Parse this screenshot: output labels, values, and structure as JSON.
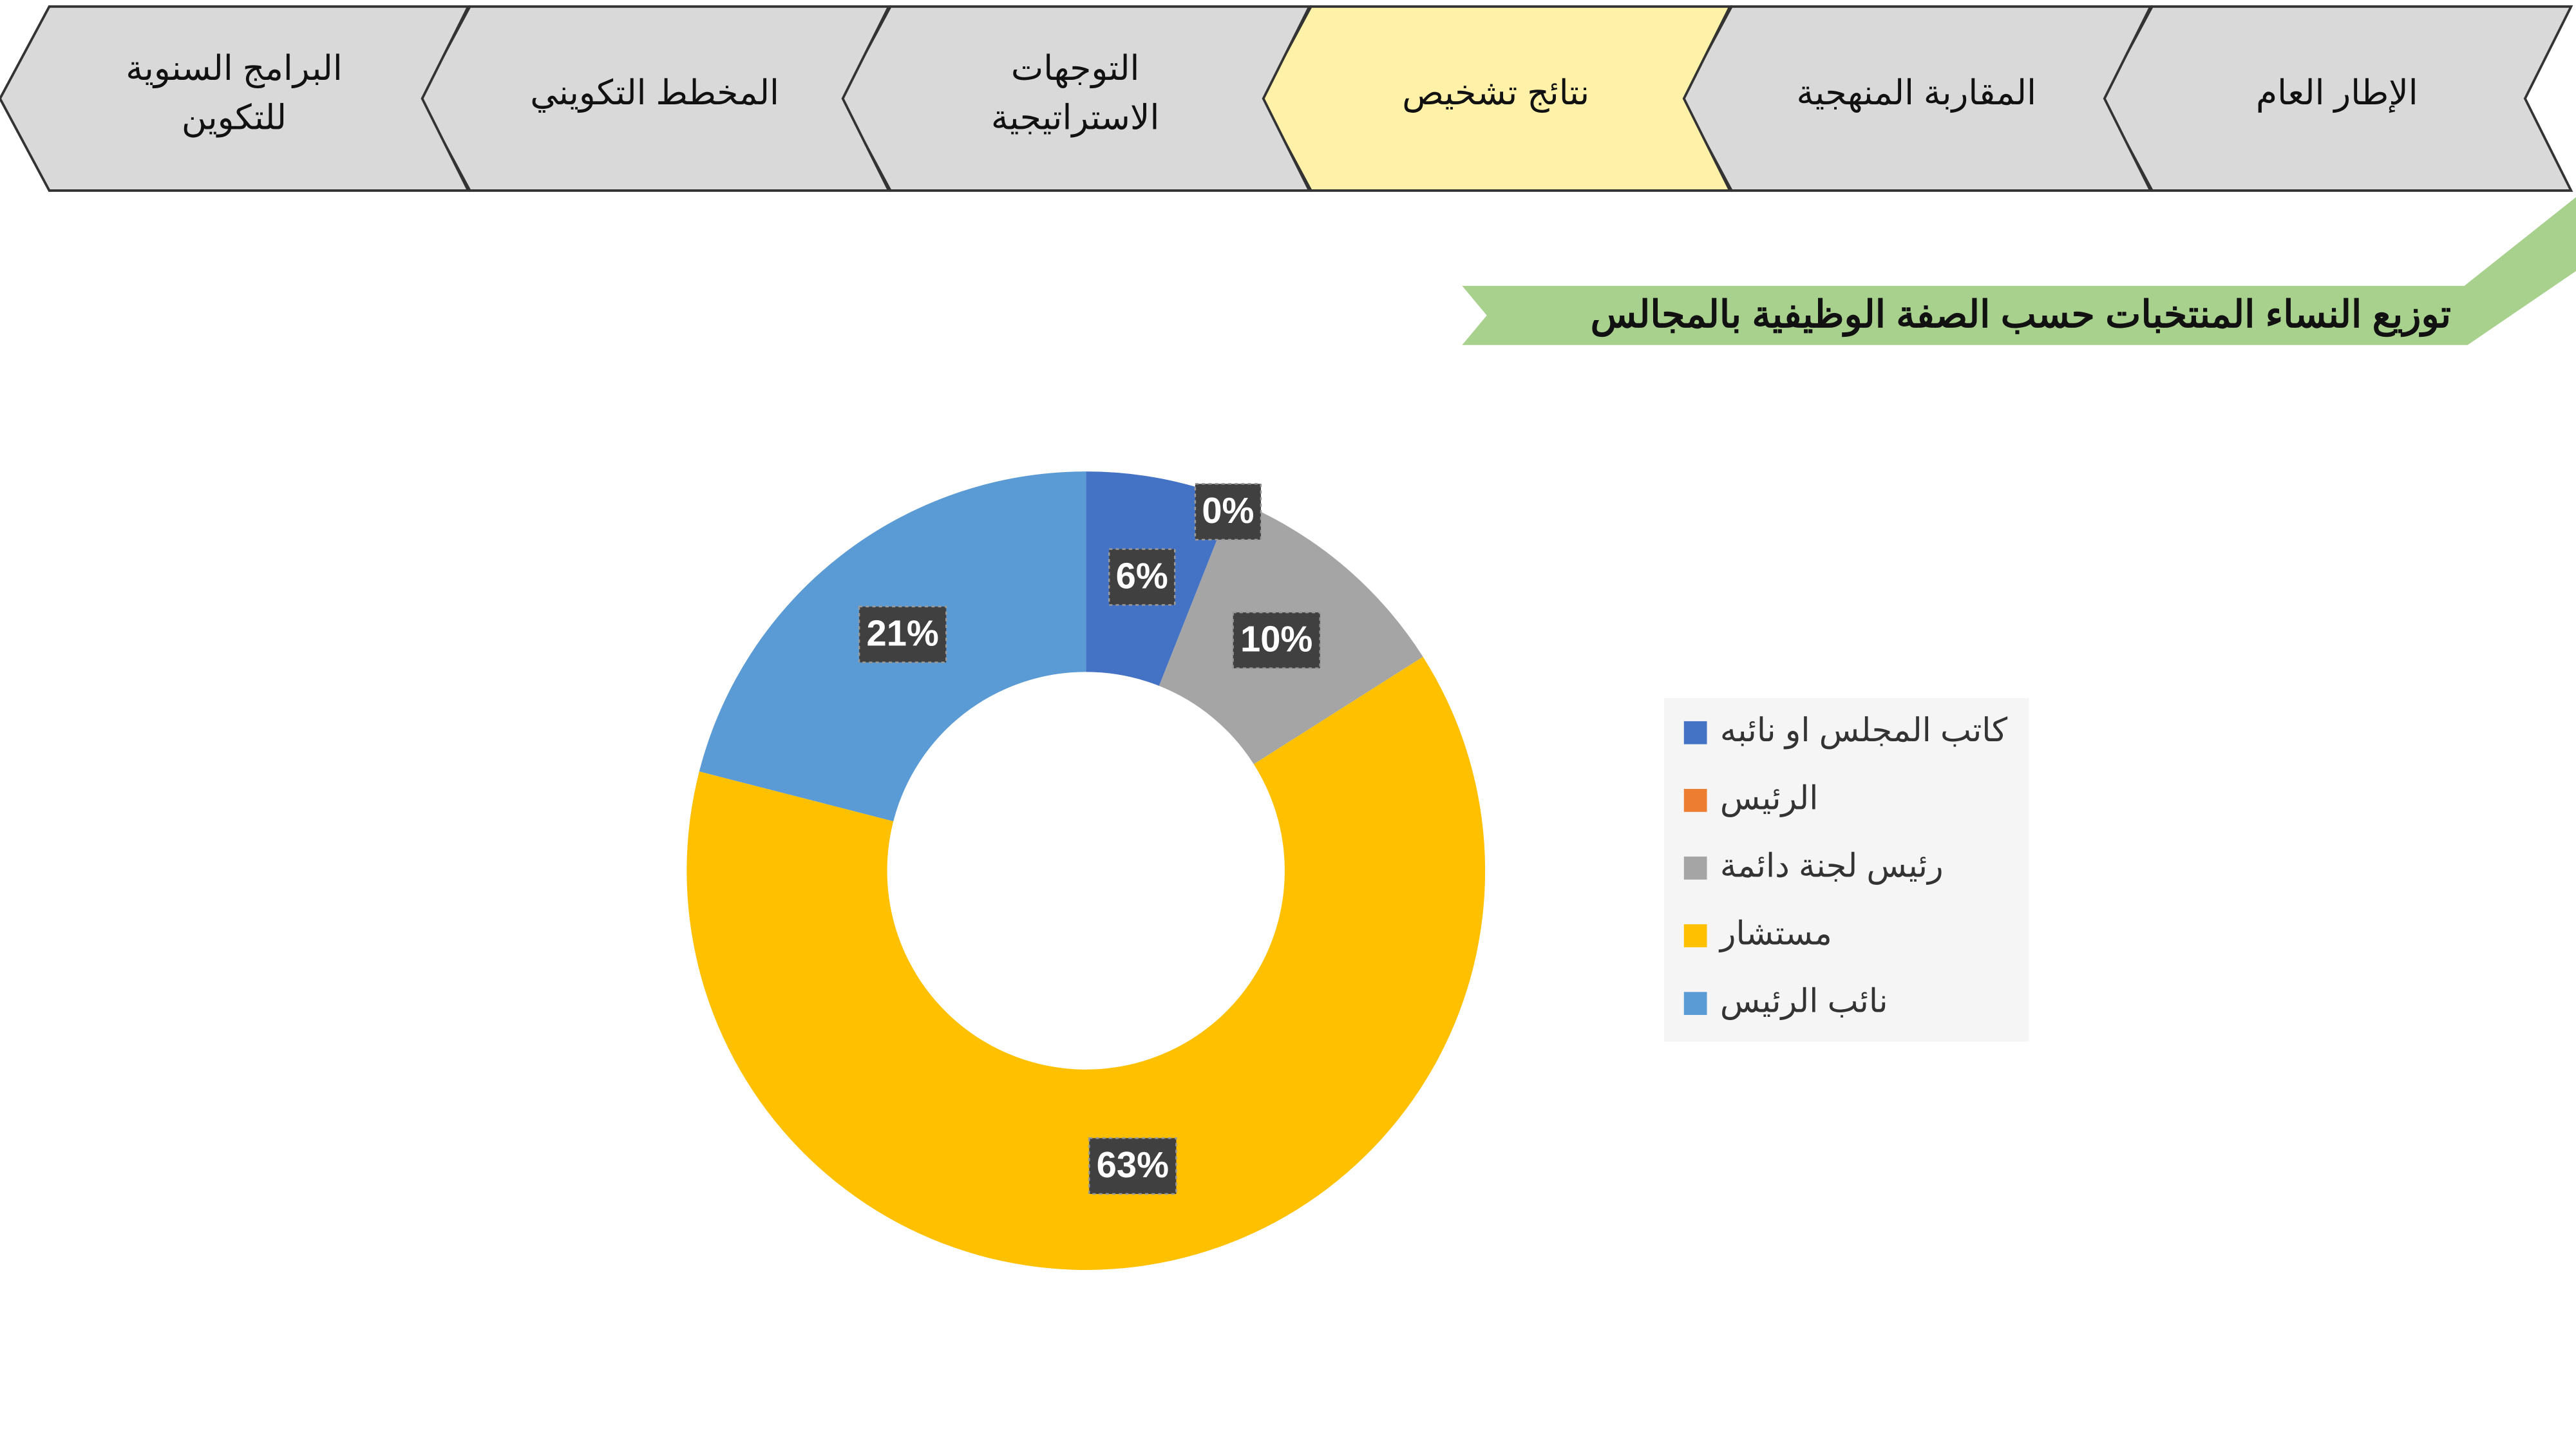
{
  "nav": {
    "tabs": [
      {
        "lines": [
          "الإطار العام"
        ],
        "active": false
      },
      {
        "lines": [
          "المقاربة المنهجية"
        ],
        "active": false
      },
      {
        "lines": [
          "نتائج تشخيص"
        ],
        "active": true
      },
      {
        "lines": [
          "التوجهات",
          "الاستراتيجية"
        ],
        "active": false
      },
      {
        "lines": [
          "المخطط التكويني"
        ],
        "active": false
      },
      {
        "lines": [
          "البرامج السنوية",
          "للتكوين"
        ],
        "active": false
      }
    ]
  },
  "chart_data": {
    "type": "donut",
    "title": "توزيع النساء المنتخبات حسب الصفة الوظيفية بالمجالس",
    "categories": [
      "كاتب المجلس او نائبه",
      "الرئيس",
      "رئيس لجنة دائمة",
      "مستشار",
      "نائب الرئيس"
    ],
    "values": [
      6,
      0,
      10,
      63,
      21
    ],
    "value_labels": [
      "6%",
      "0%",
      "10%",
      "63%",
      "21%"
    ],
    "colors": [
      "#4472c4",
      "#ed7d31",
      "#a5a5a5",
      "#ffc000",
      "#5b9bd5"
    ],
    "legend": "right"
  }
}
